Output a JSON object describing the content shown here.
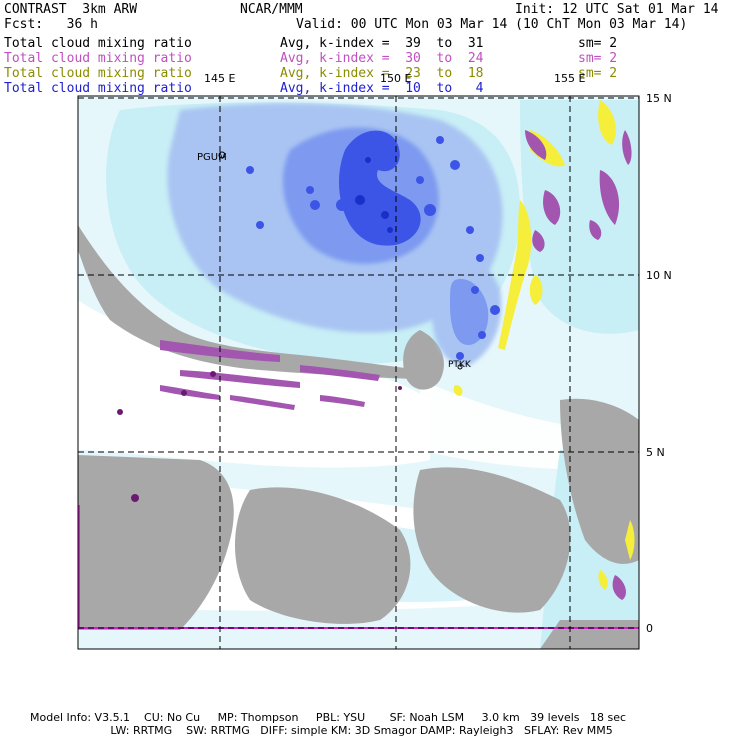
{
  "header": {
    "left_line1": "CONTRAST  3km ARW",
    "left_line2": "Fcst:   36 h",
    "center_line1": "NCAR/MMM",
    "init": "Init: 12 UTC Sat 01 Mar 14",
    "valid": "Valid: 00 UTC Mon 03 Mar 14 (10 ChT Mon 03 Mar 14)"
  },
  "fields": [
    {
      "name": "Total cloud mixing ratio",
      "stat": "Avg, k-index =  39  to  31",
      "sm": "sm= 2",
      "color": "#000000"
    },
    {
      "name": "Total cloud mixing ratio",
      "stat": "Avg, k-index =  30  to  24",
      "sm": "sm= 2",
      "color": "#c050c0"
    },
    {
      "name": "Total cloud mixing ratio",
      "stat": "Avg, k-index =  23  to  18",
      "sm": "sm= 2",
      "color": "#8c8c00"
    },
    {
      "name": "Total cloud mixing ratio",
      "stat": "Avg, k-index =  10  to   4",
      "sm": "",
      "color": "#2020d0"
    }
  ],
  "map": {
    "lon_labels": [
      "145 E",
      "150 E",
      "155 E"
    ],
    "lat_labels": [
      "15 N",
      "10 N",
      "5 N",
      "0"
    ],
    "stations": [
      "PGUM",
      "PTKK"
    ],
    "colors": {
      "background": "#e6f7fb",
      "light_cyan": "#c8eef6",
      "gray": "#a8a8a8",
      "light_blue": "#a9c4f2",
      "mid_blue": "#7d9af0",
      "deep_blue": "#3d55e6",
      "darkest_blue": "#1a2fc8",
      "yellow": "#f5ee3a",
      "purple": "#a256b0",
      "dark_purple": "#6a1a70",
      "magenta_line": "#d020d0"
    }
  },
  "footer": {
    "line1": "Model Info: V3.5.1    CU: No Cu     MP: Thompson     PBL: YSU       SF: Noah LSM     3.0 km   39 levels   18 sec",
    "line2": "                       LW: RRTMG    SW: RRTMG   DIFF: simple KM: 3D Smagor DAMP: Rayleigh3   SFLAY: Rev MM5"
  }
}
